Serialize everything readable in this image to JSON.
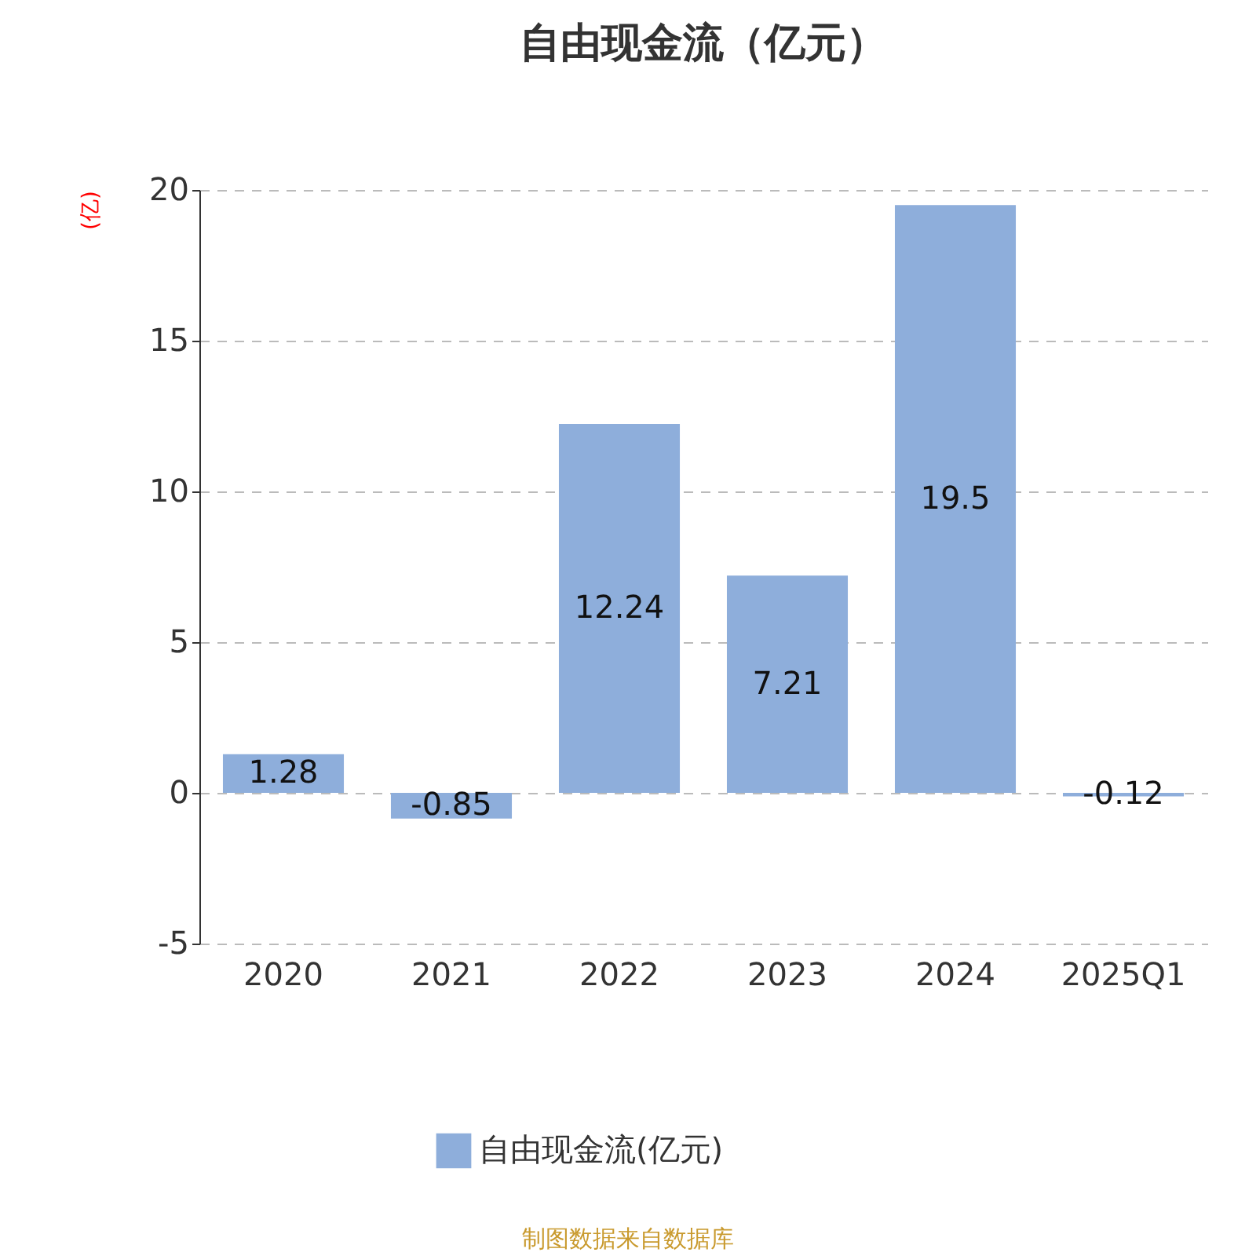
{
  "chart_data": {
    "type": "bar",
    "title": "自由现金流（亿元）",
    "ylabel": "(亿)",
    "categories": [
      "2020",
      "2021",
      "2022",
      "2023",
      "2024",
      "2025Q1"
    ],
    "series": [
      {
        "name": "自由现金流(亿元)",
        "color": "#8eaedb",
        "values": [
          1.28,
          -0.85,
          12.24,
          7.21,
          19.5,
          -0.12
        ]
      }
    ],
    "ylim": [
      -5,
      20
    ],
    "yticks": [
      -5,
      0,
      5,
      10,
      15,
      20
    ],
    "grid": "y",
    "legend": "bottom",
    "data_labels": true,
    "annotations": [
      "制图数据来自数据库"
    ]
  }
}
